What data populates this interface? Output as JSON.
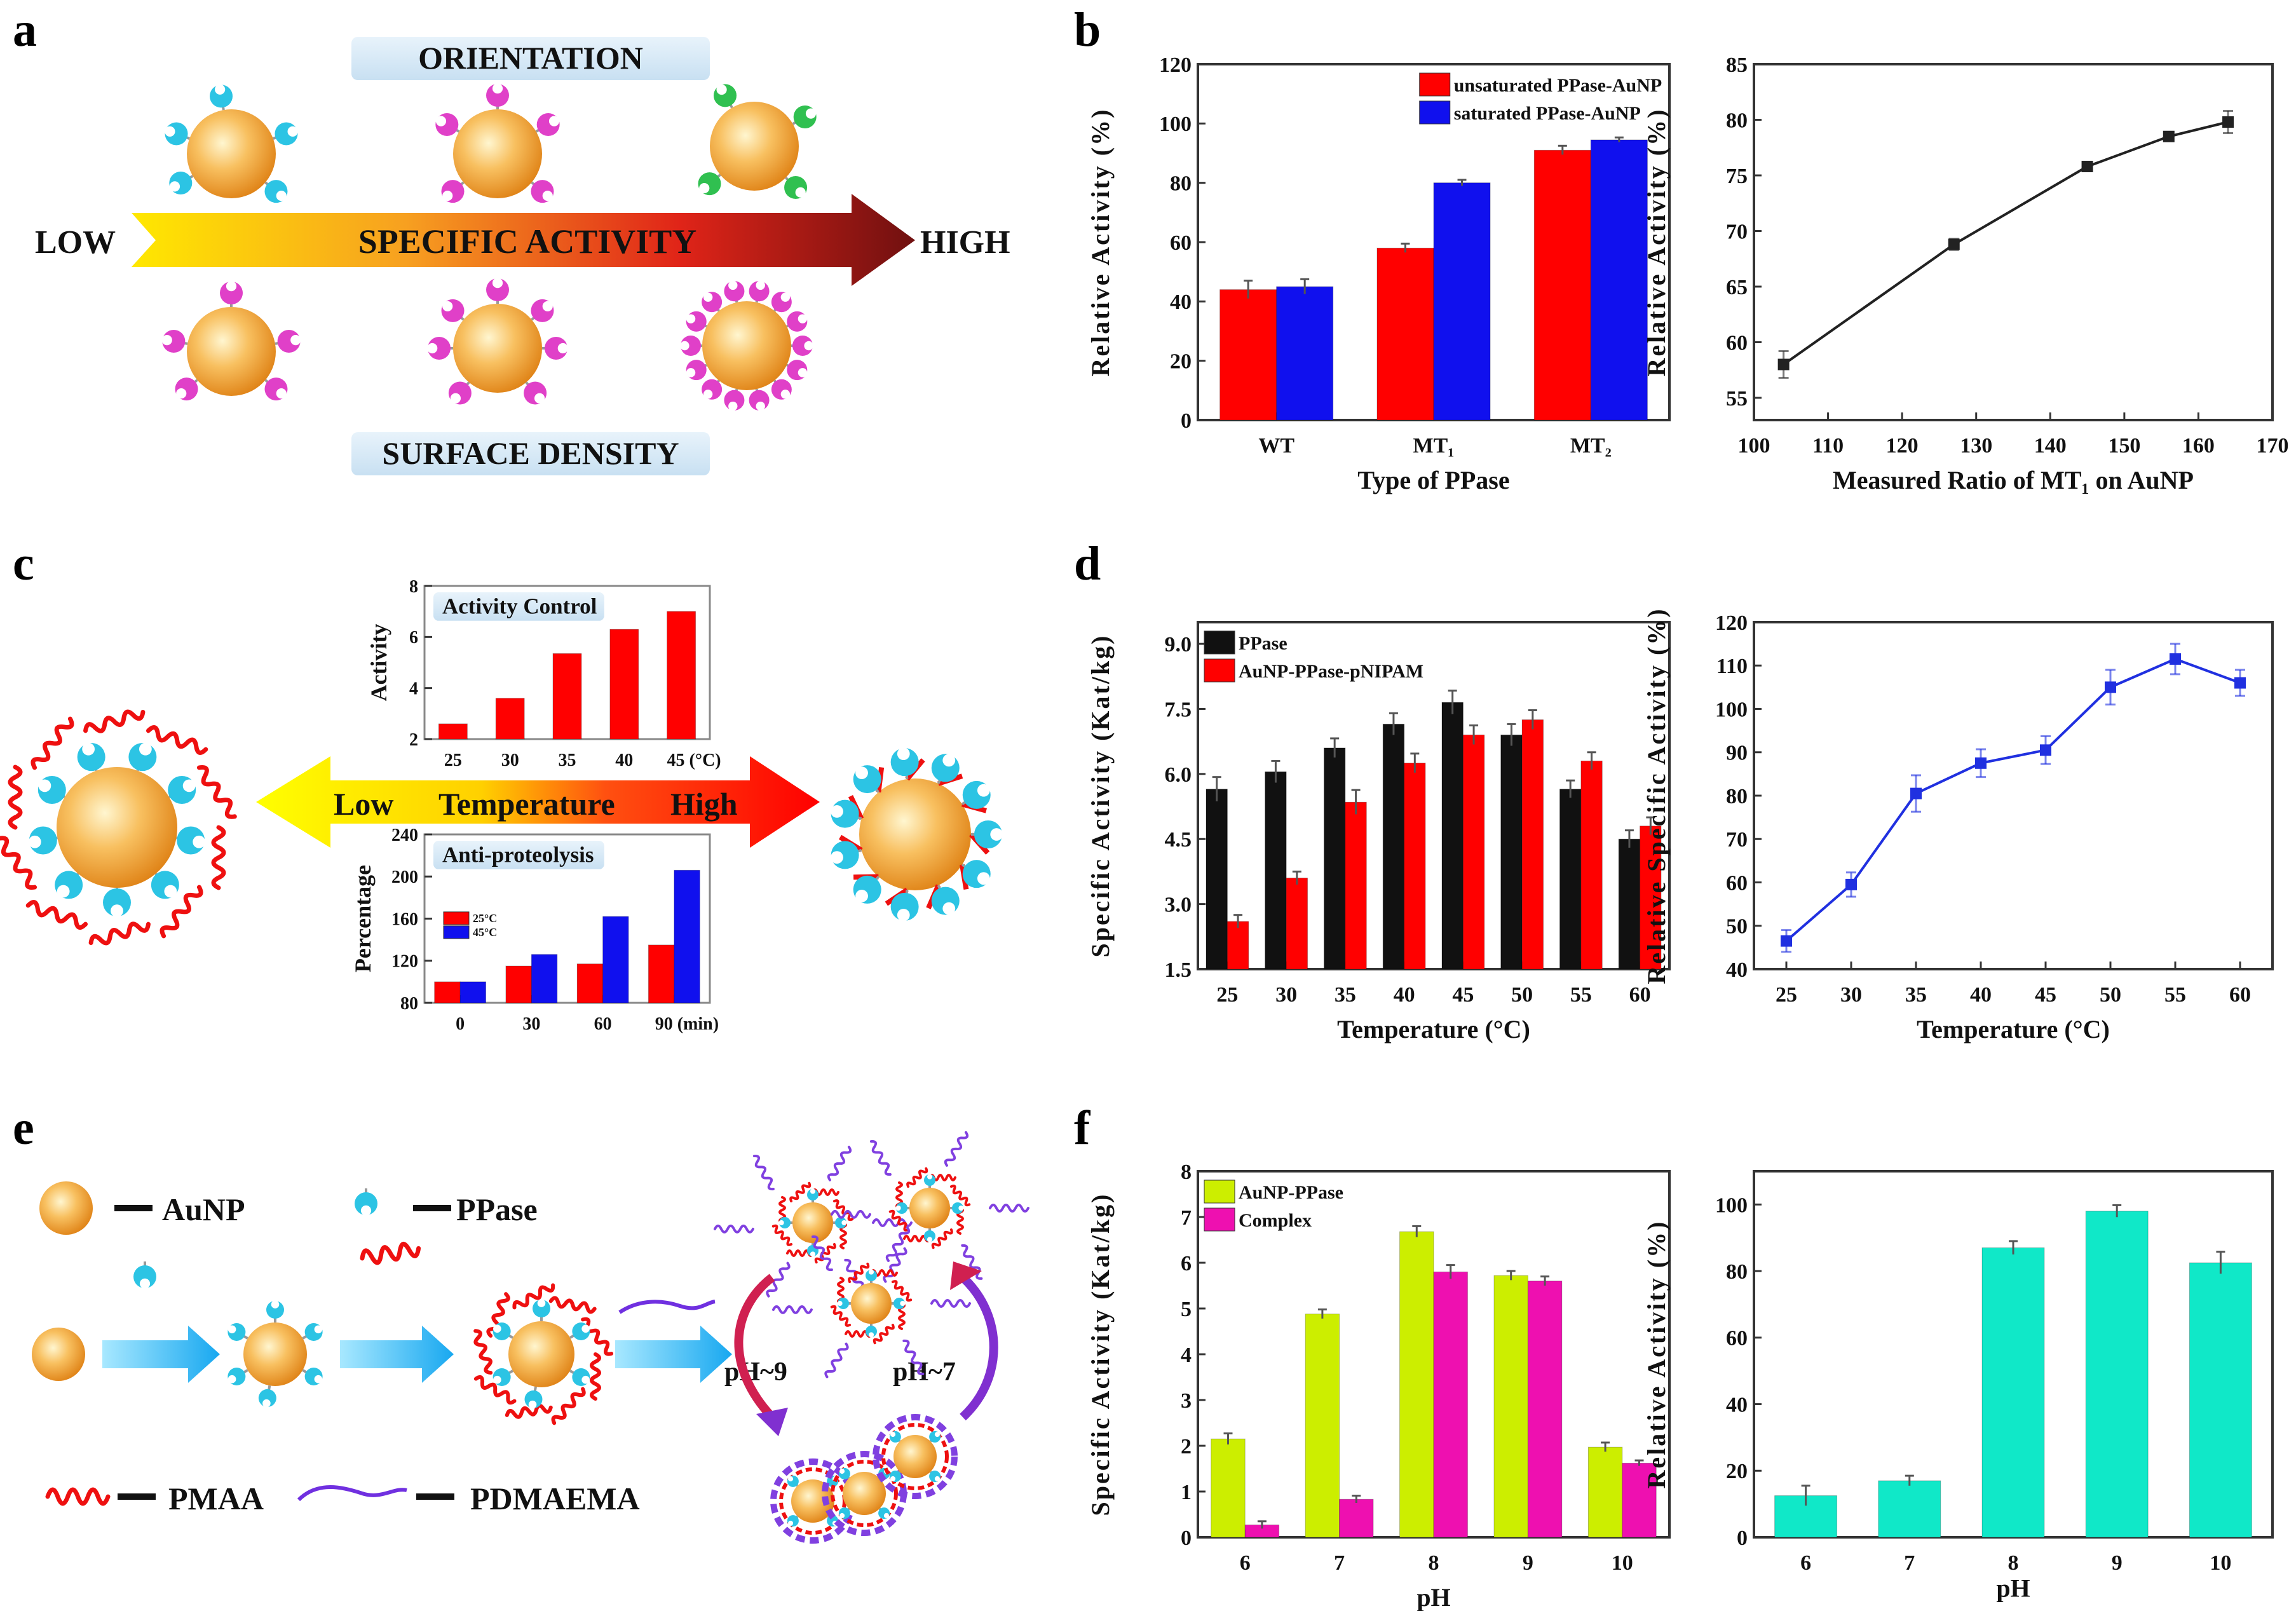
{
  "panel_labels": {
    "a": "a",
    "b": "b",
    "c": "c",
    "d": "d",
    "e": "e",
    "f": "f"
  },
  "panel_a": {
    "orientation": "ORIENTATION",
    "surface_density": "SURFACE DENSITY",
    "low": "LOW",
    "high": "HIGH",
    "specific_activity": "SPECIFIC ACTIVITY"
  },
  "panel_c": {
    "low": "Low",
    "temperature": "Temperature",
    "high": "High"
  },
  "panel_e": {
    "aunp": "AuNP",
    "ppase": "PPase",
    "pmaa": "PMAA",
    "pdmaema": "PDMAEMA",
    "ph9": "pH~9",
    "ph7": "pH~7"
  },
  "colors": {
    "red": "#ff0000",
    "blue": "#1010ee",
    "black": "#111111",
    "yellowgreen": "#ccee00",
    "magenta": "#ee10b0",
    "cyan": "#10e8c8",
    "line_blue": "#2030e0",
    "enzyme_cyan": "#2cc4e4",
    "enzyme_pink": "#e040c8",
    "enzyme_green": "#30c050"
  },
  "chart_data": [
    {
      "id": "b-bar",
      "type": "bar",
      "categories": [
        "WT",
        "MT₁",
        "MT₂"
      ],
      "series": [
        {
          "name": "unsaturated PPase-AuNP",
          "color": "#ff0000",
          "values": [
            44,
            58,
            91
          ],
          "errors": [
            3,
            1.5,
            1.5
          ]
        },
        {
          "name": "saturated PPase-AuNP",
          "color": "#1010ee",
          "values": [
            45,
            80,
            94.5
          ],
          "errors": [
            2.5,
            1,
            0.8
          ]
        }
      ],
      "xlabel": "Type of PPase",
      "ylabel": "Relative Activity (%)",
      "ylim": [
        0,
        120
      ],
      "yticks": [
        "0",
        "20",
        "40",
        "60",
        "80",
        "100",
        "120"
      ],
      "legend": "top-right",
      "title": ""
    },
    {
      "id": "b-line",
      "type": "line",
      "x": [
        104,
        127,
        145,
        156,
        164
      ],
      "series": [
        {
          "name": "MT1 ratio",
          "color": "#222222",
          "values": [
            58,
            68.8,
            75.8,
            78.5,
            79.8
          ],
          "errors": [
            1.2,
            0.5,
            0.4,
            0.4,
            1.0
          ]
        }
      ],
      "xlabel": "Measured Ratio of MT₁ on AuNP",
      "ylabel": "Relative Activity (%)",
      "xlim": [
        100,
        170
      ],
      "xticks": [
        "100",
        "110",
        "120",
        "130",
        "140",
        "150",
        "160",
        "170"
      ],
      "ylim": [
        53,
        85
      ],
      "yticks": [
        "55",
        "60",
        "65",
        "70",
        "75",
        "80",
        "85"
      ],
      "legend": "none",
      "title": ""
    },
    {
      "id": "c-activity",
      "type": "bar",
      "categories": [
        "25",
        "30",
        "35",
        "40",
        "45 (°C)"
      ],
      "series": [
        {
          "name": "Activity",
          "color": "#ff0000",
          "values": [
            2.6,
            3.6,
            5.35,
            6.3,
            7.0
          ],
          "errors": [
            0,
            0,
            0,
            0,
            0
          ]
        }
      ],
      "xlabel": "",
      "ylabel": "Activity",
      "title": "Activity Control",
      "ylim": [
        2,
        8
      ],
      "yticks": [
        "2",
        "4",
        "6",
        "8"
      ],
      "legend": "none"
    },
    {
      "id": "c-proteolysis",
      "type": "bar",
      "categories": [
        "0",
        "30",
        "60",
        "90 (min)"
      ],
      "series": [
        {
          "name": "25°C",
          "color": "#ff0000",
          "values": [
            100,
            115,
            117,
            135
          ],
          "errors": [
            0,
            0,
            0,
            0
          ]
        },
        {
          "name": "45°C",
          "color": "#1010ee",
          "values": [
            100,
            126,
            162,
            206
          ],
          "errors": [
            0,
            0,
            0,
            0
          ]
        }
      ],
      "xlabel": "",
      "ylabel": "Percentage",
      "title": "Anti-proteolysis",
      "ylim": [
        80,
        240
      ],
      "yticks": [
        "80",
        "120",
        "160",
        "200",
        "240"
      ],
      "legend": "middle-left"
    },
    {
      "id": "d-bar",
      "type": "bar",
      "categories": [
        "25",
        "30",
        "35",
        "40",
        "45",
        "50",
        "55",
        "60"
      ],
      "series": [
        {
          "name": "PPase",
          "color": "#111111",
          "values": [
            5.65,
            6.05,
            6.6,
            7.15,
            7.65,
            6.9,
            5.65,
            4.5
          ],
          "errors": [
            0.28,
            0.25,
            0.22,
            0.25,
            0.27,
            0.25,
            0.2,
            0.2
          ]
        },
        {
          "name": "AuNP-PPase-pNIPAM",
          "color": "#ff0000",
          "values": [
            2.6,
            3.6,
            5.35,
            6.25,
            6.9,
            7.25,
            6.3,
            4.8
          ],
          "errors": [
            0.15,
            0.15,
            0.28,
            0.22,
            0.22,
            0.22,
            0.2,
            0.2
          ]
        }
      ],
      "xlabel": "Temperature (°C)",
      "ylabel": "Specific Activity (Kat/kg)",
      "ylim": [
        1.5,
        9.5
      ],
      "yticks": [
        "1.5",
        "3.0",
        "4.5",
        "6.0",
        "7.5",
        "9.0"
      ],
      "legend": "top-left",
      "title": ""
    },
    {
      "id": "d-line",
      "type": "line",
      "x": [
        25,
        30,
        35,
        40,
        45,
        50,
        55,
        60
      ],
      "series": [
        {
          "name": "Relative specific activity",
          "color": "#2030e0",
          "values": [
            46.5,
            59.5,
            80.5,
            87.5,
            90.5,
            105,
            111.5,
            106
          ],
          "errors": [
            2.5,
            2.8,
            4.2,
            3.2,
            3.2,
            4,
            3.5,
            3
          ]
        }
      ],
      "xlabel": "Temperature (°C)",
      "ylabel": "Relative Specific Activity (%)",
      "xlim": [
        22.5,
        62.5
      ],
      "xticks": [
        "25",
        "30",
        "35",
        "40",
        "45",
        "50",
        "55",
        "60"
      ],
      "ylim": [
        40,
        120
      ],
      "yticks": [
        "40",
        "50",
        "60",
        "70",
        "80",
        "90",
        "100",
        "110",
        "120"
      ],
      "legend": "none",
      "title": ""
    },
    {
      "id": "f-bar",
      "type": "bar",
      "categories": [
        "6",
        "7",
        "8",
        "9",
        "10"
      ],
      "series": [
        {
          "name": "AuNP-PPase",
          "color": "#ccee00",
          "values": [
            2.15,
            4.88,
            6.68,
            5.72,
            1.97
          ],
          "errors": [
            0.12,
            0.1,
            0.12,
            0.1,
            0.1
          ]
        },
        {
          "name": "Complex",
          "color": "#ee10b0",
          "values": [
            0.27,
            0.83,
            5.8,
            5.6,
            1.62
          ],
          "errors": [
            0.08,
            0.08,
            0.15,
            0.1,
            0.06
          ]
        }
      ],
      "xlabel": "pH",
      "ylabel": "Specific Activity (Kat/kg)",
      "ylim": [
        0,
        8
      ],
      "yticks": [
        "0",
        "1",
        "2",
        "3",
        "4",
        "5",
        "6",
        "7",
        "8"
      ],
      "legend": "top-left",
      "title": ""
    },
    {
      "id": "f-relative",
      "type": "bar",
      "categories": [
        "6",
        "7",
        "8",
        "9",
        "10"
      ],
      "series": [
        {
          "name": "Relative Activity",
          "color": "#10e8c8",
          "values": [
            12.5,
            17,
            87,
            98,
            82.5
          ],
          "errors": [
            3,
            1.5,
            2,
            1.8,
            3.3
          ]
        }
      ],
      "xlabel": "pH",
      "ylabel": "Relative Activity (%)",
      "ylim": [
        0,
        110
      ],
      "yticks": [
        "0",
        "20",
        "40",
        "60",
        "80",
        "100"
      ],
      "legend": "none",
      "title": ""
    }
  ]
}
